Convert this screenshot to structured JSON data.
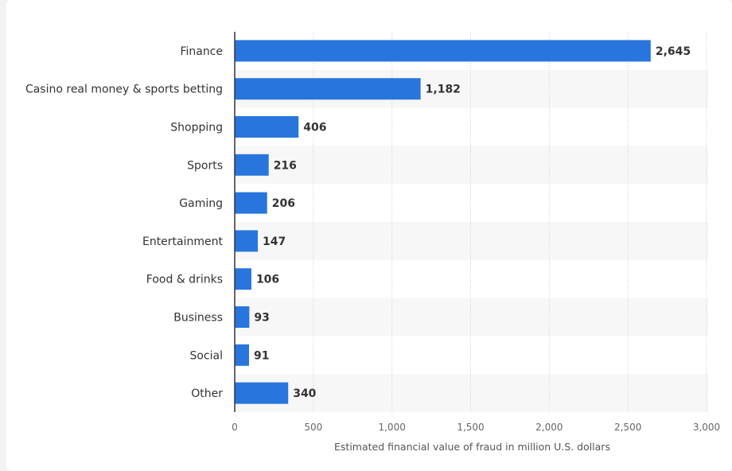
{
  "chart_data": {
    "type": "bar",
    "orientation": "horizontal",
    "categories": [
      "Finance",
      "Casino real money & sports betting",
      "Shopping",
      "Sports",
      "Gaming",
      "Entertainment",
      "Food & drinks",
      "Business",
      "Social",
      "Other"
    ],
    "values": [
      2645,
      1182,
      406,
      216,
      206,
      147,
      106,
      93,
      91,
      340
    ],
    "value_labels": [
      "2,645",
      "1,182",
      "406",
      "216",
      "206",
      "147",
      "106",
      "93",
      "91",
      "340"
    ],
    "xlabel": "Estimated financial value of fraud in million U.S. dollars",
    "ylabel": "",
    "xlim": [
      0,
      3000
    ],
    "xticks": [
      0,
      500,
      1000,
      1500,
      2000,
      2500,
      3000
    ],
    "xtick_labels": [
      "0",
      "500",
      "1,000",
      "1,500",
      "2,000",
      "2,500",
      "3,000"
    ],
    "grid": "vertical dotted",
    "colors": {
      "bar": "#2876dd",
      "band": "#f7f7f7",
      "grid": "#cccccc",
      "axis": "#333333"
    }
  }
}
